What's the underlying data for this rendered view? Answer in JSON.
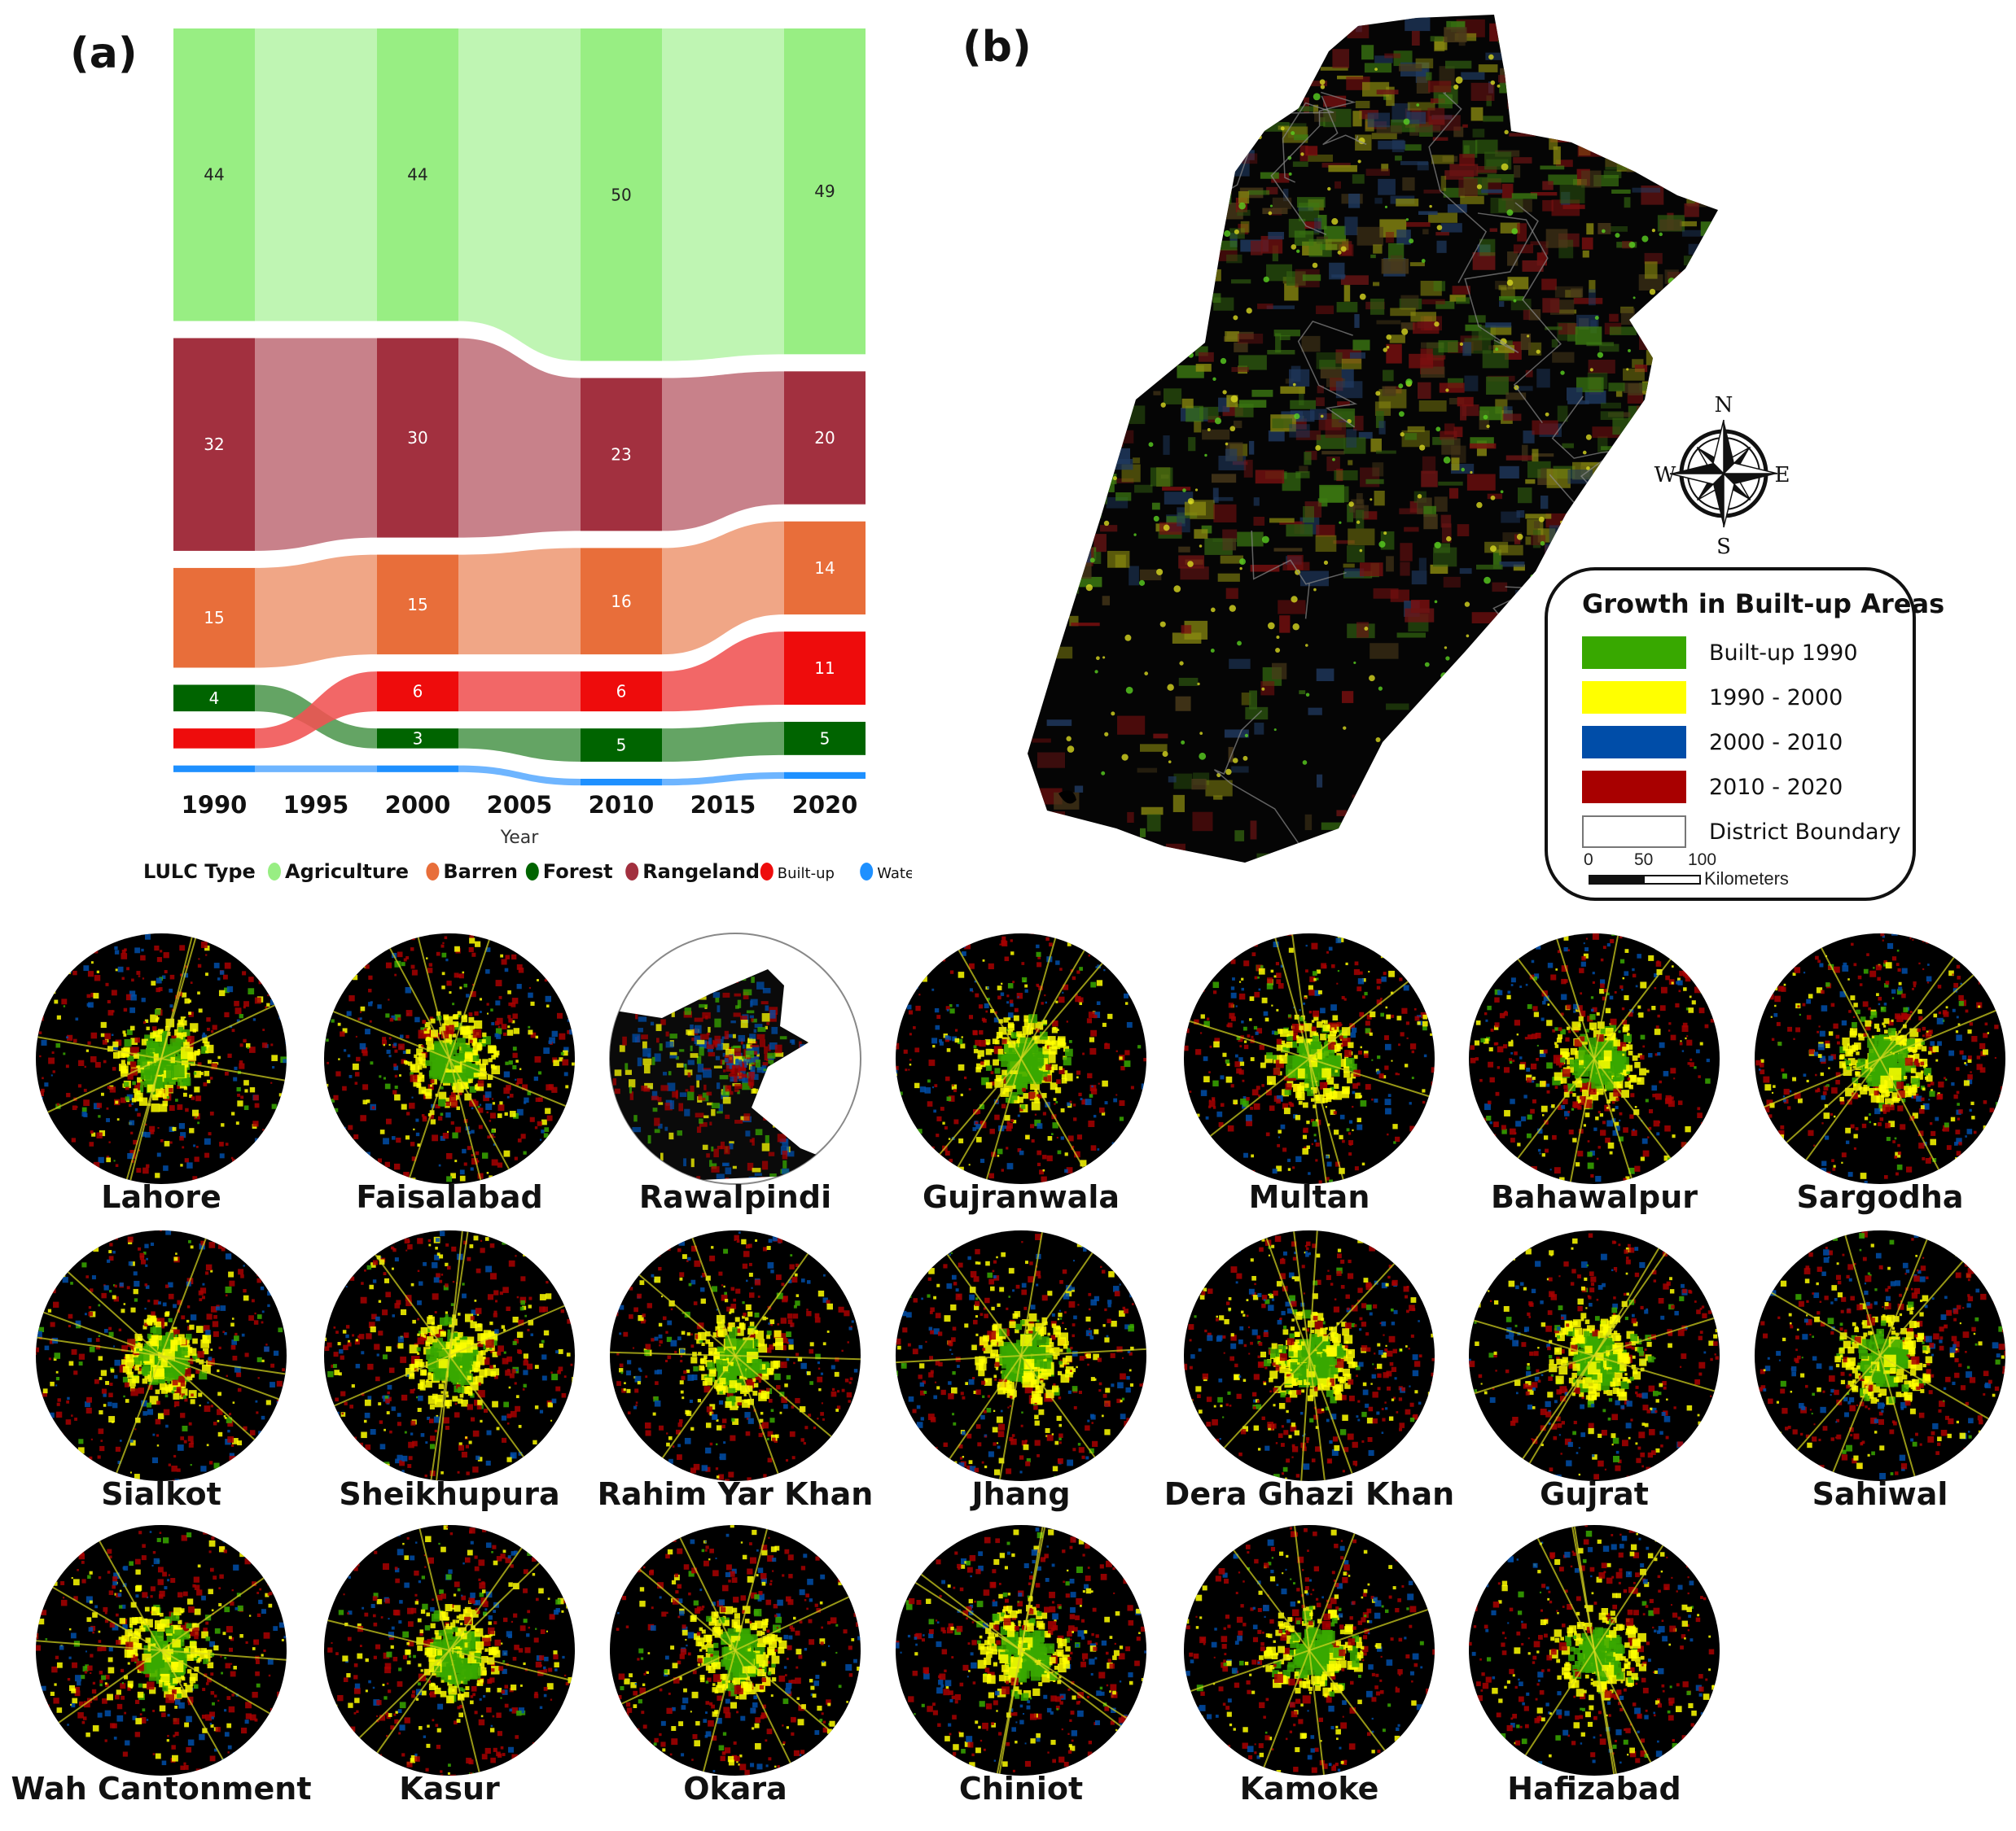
{
  "panels": {
    "a": "(a)",
    "b": "(b)"
  },
  "chart_data": {
    "type": "sankey",
    "title": "",
    "xlabel": "Year",
    "ylabel": "",
    "x_ticks": [
      "1990",
      "1995",
      "2000",
      "2005",
      "2010",
      "2015",
      "2020"
    ],
    "years": [
      1990,
      2000,
      2010,
      2020
    ],
    "legend_title": "LULC Type",
    "legend_placement": "bottom",
    "series": [
      {
        "name": "Agriculture",
        "color": "#98ee83",
        "flow_color": "#b6f4a8",
        "values": [
          44,
          44,
          50,
          49
        ],
        "labels": [
          "44",
          "44",
          "50",
          "49"
        ],
        "label_color": "#222222"
      },
      {
        "name": "Rangeland",
        "color": "#a2303f",
        "flow_color": "#c0707a",
        "values": [
          32,
          30,
          23,
          20
        ],
        "labels": [
          "32",
          "30",
          "23",
          "20"
        ],
        "label_color": "#ffffff"
      },
      {
        "name": "Barren",
        "color": "#e86e3a",
        "flow_color": "#ee9a75",
        "values": [
          15,
          15,
          16,
          14
        ],
        "labels": [
          "15",
          "15",
          "16",
          "14"
        ],
        "label_color": "#ffffff"
      },
      {
        "name": "Forest",
        "color": "#006400",
        "flow_color": "#4f974f",
        "values": [
          4,
          3,
          5,
          5
        ],
        "labels": [
          "4",
          "3",
          "5",
          "5"
        ],
        "label_color": "#ffffff"
      },
      {
        "name": "Built-up",
        "color": "#ee0c0c",
        "flow_color": "#f05252",
        "values": [
          3,
          6,
          6,
          11
        ],
        "labels": [
          null,
          "6",
          "6",
          "11"
        ],
        "label_color": "#ffffff"
      },
      {
        "name": "Water",
        "color": "#1e90ff",
        "flow_color": "#5aabff",
        "values": [
          1,
          1,
          1,
          1
        ],
        "labels": [
          null,
          null,
          null,
          null
        ],
        "label_color": "#ffffff"
      }
    ],
    "stack_order": {
      "1990": [
        "Agriculture",
        "Rangeland",
        "Barren",
        "Forest",
        "Built-up",
        "Water"
      ],
      "default": [
        "Agriculture",
        "Rangeland",
        "Barren",
        "Built-up",
        "Forest",
        "Water"
      ]
    }
  },
  "map": {
    "compass": {
      "n": "N",
      "s": "S",
      "e": "E",
      "w": "W"
    },
    "legend": {
      "title": "Growth in Built-up Areas",
      "items": [
        {
          "label": "Built-up 1990",
          "color": "#38a800"
        },
        {
          "label": "1990 - 2000",
          "color": "#ffff00"
        },
        {
          "label": "2000 - 2010",
          "color": "#004da8"
        },
        {
          "label": "2010 - 2020",
          "color": "#a80000"
        },
        {
          "label": "District Boundary",
          "color": "#ffffff"
        }
      ],
      "scale": {
        "ticks": [
          "0",
          "50",
          "100"
        ],
        "unit": "Kilometers"
      }
    }
  },
  "cities": [
    "Lahore",
    "Faisalabad",
    "Rawalpindi",
    "Gujranwala",
    "Multan",
    "Bahawalpur",
    "Sargodha",
    "Sialkot",
    "Sheikhupura",
    "Rahim Yar Khan",
    "Jhang",
    "Dera Ghazi Khan",
    "Gujrat",
    "Sahiwal",
    "Wah Cantonment",
    "Kasur",
    "Okara",
    "Chiniot",
    "Kamoke",
    "Hafizabad"
  ]
}
